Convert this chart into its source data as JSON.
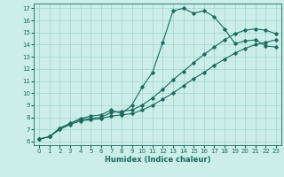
{
  "xlabel": "Humidex (Indice chaleur)",
  "bg_color": "#cceee8",
  "line_color": "#1a6b5e",
  "xlim": [
    -0.5,
    23.5
  ],
  "ylim": [
    5.7,
    17.4
  ],
  "xticks": [
    0,
    1,
    2,
    3,
    4,
    5,
    6,
    7,
    8,
    9,
    10,
    11,
    12,
    13,
    14,
    15,
    16,
    17,
    18,
    19,
    20,
    21,
    22,
    23
  ],
  "yticks": [
    6,
    7,
    8,
    9,
    10,
    11,
    12,
    13,
    14,
    15,
    16,
    17
  ],
  "line1_x": [
    0,
    1,
    2,
    3,
    4,
    5,
    6,
    7,
    8,
    9,
    10,
    11,
    12,
    13,
    14,
    15,
    16,
    17,
    18,
    19,
    20,
    21,
    22,
    23
  ],
  "line1_y": [
    6.2,
    6.4,
    7.1,
    7.5,
    7.9,
    8.1,
    8.2,
    8.6,
    8.3,
    9.0,
    10.5,
    11.7,
    14.2,
    16.8,
    17.0,
    16.6,
    16.8,
    16.3,
    15.3,
    14.1,
    14.3,
    14.4,
    13.9,
    13.8
  ],
  "line2_x": [
    0,
    1,
    2,
    3,
    4,
    5,
    6,
    7,
    8,
    9,
    10,
    11,
    12,
    13,
    14,
    15,
    16,
    17,
    18,
    19,
    20,
    21,
    22,
    23
  ],
  "line2_y": [
    6.2,
    6.4,
    7.1,
    7.5,
    7.8,
    7.9,
    8.0,
    8.4,
    8.5,
    8.6,
    9.0,
    9.6,
    10.3,
    11.1,
    11.8,
    12.5,
    13.2,
    13.8,
    14.4,
    14.9,
    15.2,
    15.3,
    15.2,
    14.9
  ],
  "line3_x": [
    0,
    1,
    2,
    3,
    4,
    5,
    6,
    7,
    8,
    9,
    10,
    11,
    12,
    13,
    14,
    15,
    16,
    17,
    18,
    19,
    20,
    21,
    22,
    23
  ],
  "line3_y": [
    6.2,
    6.4,
    7.0,
    7.4,
    7.7,
    7.8,
    7.9,
    8.1,
    8.2,
    8.3,
    8.6,
    9.0,
    9.5,
    10.0,
    10.6,
    11.2,
    11.7,
    12.3,
    12.8,
    13.3,
    13.7,
    14.0,
    14.2,
    14.4
  ],
  "tick_fontsize": 5.0,
  "xlabel_fontsize": 6.0
}
